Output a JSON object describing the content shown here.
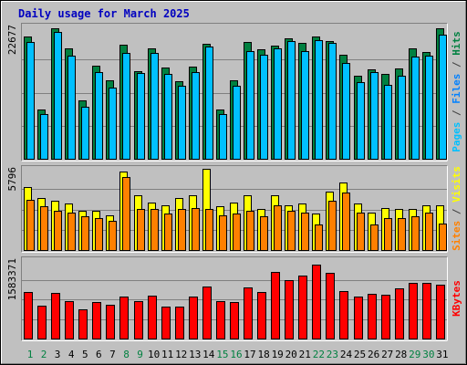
{
  "chart_data": {
    "type": "bar",
    "title": "Daily usage for March 2025",
    "categories": [
      "1",
      "2",
      "3",
      "4",
      "5",
      "6",
      "7",
      "8",
      "9",
      "10",
      "11",
      "12",
      "13",
      "14",
      "15",
      "16",
      "17",
      "18",
      "19",
      "20",
      "21",
      "22",
      "23",
      "24",
      "25",
      "26",
      "27",
      "28",
      "29",
      "30",
      "31"
    ],
    "weekend_days": [
      "1",
      "2",
      "8",
      "9",
      "15",
      "16",
      "22",
      "23",
      "29",
      "30"
    ],
    "panels": [
      {
        "key": "pages_files_hits",
        "max_label": "22677",
        "ymax": 22677,
        "side_label": [
          {
            "text": "Pages",
            "color": "#00c0ff"
          },
          {
            "text": " / ",
            "color": "#404040"
          },
          {
            "text": "Files",
            "color": "#0080ff"
          },
          {
            "text": " / ",
            "color": "#404040"
          },
          {
            "text": "Hits",
            "color": "#008040"
          }
        ],
        "series": [
          {
            "name": "Hits",
            "color": "#008040",
            "values": [
              21000,
              8500,
              22400,
              19000,
              10000,
              16000,
              13500,
              19500,
              15000,
              18900,
              15600,
              13300,
              15800,
              19700,
              8500,
              13400,
              20000,
              18700,
              19400,
              20600,
              19800,
              21000,
              20200,
              17900,
              14200,
              15300,
              14600,
              15500,
              19000,
              18300,
              22400
            ]
          },
          {
            "name": "Files",
            "color": "#0080ff",
            "values": [
              20000,
              7600,
              21700,
              17600,
              8900,
              14900,
              12200,
              18100,
              14700,
              18200,
              14500,
              12500,
              14900,
              19300,
              7700,
              12500,
              18400,
              17900,
              19000,
              20200,
              18400,
              20300,
              19800,
              16400,
              13100,
              14800,
              12700,
              14200,
              17500,
              17700,
              21300
            ]
          },
          {
            "name": "Pages",
            "color": "#00c0ff",
            "values": [
              20000,
              7600,
              21700,
              17600,
              8900,
              14900,
              12200,
              18100,
              14700,
              18200,
              14500,
              12500,
              14900,
              19300,
              7700,
              12500,
              18400,
              17900,
              19000,
              20200,
              18400,
              20300,
              19800,
              16400,
              13100,
              14800,
              12700,
              14200,
              17500,
              17700,
              21300
            ]
          }
        ]
      },
      {
        "key": "visits_sites",
        "max_label": "5796",
        "ymax": 5796,
        "side_label": [
          {
            "text": "Sites",
            "color": "#ff8000"
          },
          {
            "text": " / ",
            "color": "#404040"
          },
          {
            "text": "Visits",
            "color": "#ffff00"
          }
        ],
        "series": [
          {
            "name": "Visits",
            "color": "#ffff00",
            "values": [
              4500,
              3700,
              3500,
              3300,
              2800,
              2800,
              2500,
              5600,
              3900,
              3400,
              3200,
              3700,
              3900,
              5800,
              3100,
              3400,
              3900,
              2900,
              3900,
              3200,
              3300,
              2600,
              4200,
              4800,
              3300,
              2700,
              3000,
              2900,
              2900,
              3200,
              3200
            ]
          },
          {
            "name": "Sites",
            "color": "#ff8000",
            "values": [
              3600,
              3100,
              2800,
              2700,
              2400,
              2300,
              2100,
              5200,
              2900,
              2900,
              2600,
              2900,
              3000,
              2900,
              2500,
              2600,
              2800,
              2400,
              3200,
              2800,
              2700,
              1800,
              3500,
              4100,
              2700,
              1800,
              2300,
              2300,
              2400,
              2700,
              1900
            ]
          }
        ]
      },
      {
        "key": "kbytes",
        "max_label": "1583371",
        "ymax": 1583371,
        "side_label": [
          {
            "text": "KBytes",
            "color": "#ff0000"
          }
        ],
        "series": [
          {
            "name": "KBytes",
            "color": "#ff0000",
            "values": [
              930000,
              670000,
              920000,
              760000,
              590000,
              740000,
              690000,
              840000,
              750000,
              870000,
              640000,
              640000,
              850000,
              1050000,
              760000,
              740000,
              1040000,
              930000,
              1340000,
              1180000,
              1270000,
              1500000,
              1330000,
              950000,
              850000,
              910000,
              890000,
              1020000,
              1130000,
              1130000,
              1090000
            ]
          }
        ]
      }
    ]
  }
}
